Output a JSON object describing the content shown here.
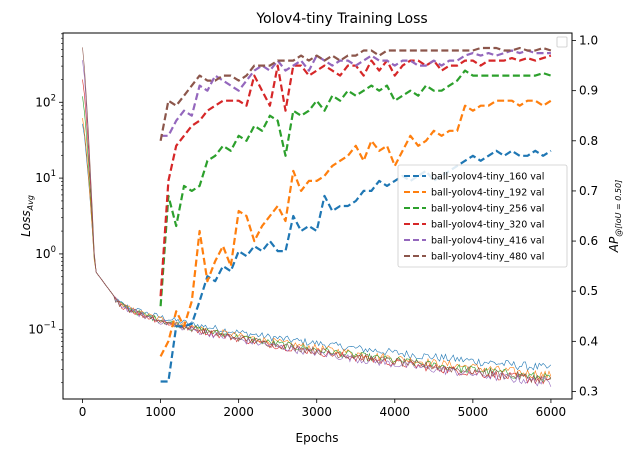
{
  "chart_data": {
    "type": "line",
    "title": "Yolov4-tiny Training Loss",
    "xlabel": "Epochs",
    "ylabel_left_main": "Loss",
    "ylabel_left_sub": "Avg",
    "ylabel_right_main": "AP",
    "ylabel_right_sub": "@[IoU = 0.50]",
    "xlim": [
      -250,
      6270
    ],
    "xticks": [
      0,
      1000,
      2000,
      3000,
      4000,
      5000,
      6000
    ],
    "left_axis": {
      "scale": "log",
      "ylim": [
        0.0122,
        820
      ],
      "tick_exponents": [
        -1,
        0,
        1,
        2
      ],
      "tick_base": "10"
    },
    "right_axis": {
      "scale": "linear",
      "ylim": [
        0.285,
        1.015
      ],
      "ticks": [
        0.3,
        0.4,
        0.5,
        0.6,
        0.7,
        0.8,
        0.9,
        1.0
      ],
      "tick_labels": [
        "0.3",
        "0.4",
        "0.5",
        "0.6",
        "0.7",
        "0.8",
        "0.9",
        "1.0"
      ]
    },
    "legend_position": "center-right",
    "loss_series": [
      {
        "color": "#1f77b4",
        "start": 52,
        "final": 0.031
      },
      {
        "color": "#ff7f0e",
        "start": 62,
        "final": 0.025
      },
      {
        "color": "#2ca02c",
        "start": 120,
        "final": 0.023
      },
      {
        "color": "#d62728",
        "start": 200,
        "final": 0.021
      },
      {
        "color": "#9467bd",
        "start": 360,
        "final": 0.02
      },
      {
        "color": "#8c564b",
        "start": 530,
        "final": 0.022
      }
    ],
    "val_series": [
      {
        "name": "ball-yolov4-tiny_160 val",
        "color": "#1f77b4",
        "x": [
          1000,
          1100,
          1200,
          1300,
          1400,
          1500,
          1600,
          1700,
          1800,
          1900,
          2000,
          2100,
          2200,
          2300,
          2400,
          2500,
          2600,
          2700,
          2800,
          2900,
          3000,
          3100,
          3200,
          3300,
          3400,
          3500,
          3600,
          3700,
          3800,
          3900,
          4000,
          4100,
          4200,
          4300,
          4400,
          4500,
          4600,
          4700,
          4800,
          4900,
          5000,
          5100,
          5200,
          5300,
          5400,
          5500,
          5600,
          5700,
          5800,
          5900,
          6000
        ],
        "y": [
          0.32,
          0.32,
          0.43,
          0.43,
          0.435,
          0.48,
          0.53,
          0.52,
          0.55,
          0.54,
          0.58,
          0.57,
          0.59,
          0.58,
          0.6,
          0.58,
          0.58,
          0.65,
          0.62,
          0.63,
          0.62,
          0.69,
          0.66,
          0.67,
          0.67,
          0.68,
          0.7,
          0.7,
          0.72,
          0.71,
          0.72,
          0.73,
          0.72,
          0.73,
          0.74,
          0.72,
          0.73,
          0.74,
          0.75,
          0.76,
          0.77,
          0.76,
          0.77,
          0.78,
          0.77,
          0.78,
          0.77,
          0.77,
          0.78,
          0.77,
          0.78
        ]
      },
      {
        "name": "ball-yolov4-tiny_192 val",
        "color": "#ff7f0e",
        "x": [
          1000,
          1100,
          1200,
          1300,
          1400,
          1500,
          1600,
          1700,
          1800,
          1900,
          2000,
          2100,
          2200,
          2300,
          2400,
          2500,
          2600,
          2700,
          2800,
          2900,
          3000,
          3100,
          3200,
          3300,
          3400,
          3500,
          3600,
          3700,
          3800,
          3900,
          4000,
          4100,
          4200,
          4300,
          4400,
          4500,
          4600,
          4700,
          4800,
          4900,
          5000,
          5100,
          5200,
          5300,
          5400,
          5500,
          5600,
          5700,
          5800,
          5900,
          6000
        ],
        "y": [
          0.37,
          0.4,
          0.46,
          0.43,
          0.48,
          0.62,
          0.52,
          0.56,
          0.59,
          0.55,
          0.66,
          0.65,
          0.6,
          0.63,
          0.65,
          0.67,
          0.64,
          0.74,
          0.7,
          0.72,
          0.72,
          0.73,
          0.75,
          0.76,
          0.77,
          0.79,
          0.76,
          0.8,
          0.78,
          0.79,
          0.75,
          0.78,
          0.81,
          0.79,
          0.8,
          0.82,
          0.81,
          0.82,
          0.82,
          0.87,
          0.86,
          0.87,
          0.87,
          0.88,
          0.88,
          0.88,
          0.87,
          0.88,
          0.88,
          0.87,
          0.88
        ]
      },
      {
        "name": "ball-yolov4-tiny_256 val",
        "color": "#2ca02c",
        "x": [
          1000,
          1100,
          1200,
          1300,
          1400,
          1500,
          1600,
          1700,
          1800,
          1900,
          2000,
          2100,
          2200,
          2300,
          2400,
          2500,
          2600,
          2700,
          2800,
          2900,
          3000,
          3100,
          3200,
          3300,
          3400,
          3500,
          3600,
          3700,
          3800,
          3900,
          4000,
          4100,
          4200,
          4300,
          4400,
          4500,
          4600,
          4700,
          4800,
          4900,
          5000,
          5100,
          5200,
          5300,
          5400,
          5500,
          5600,
          5700,
          5800,
          5900,
          6000
        ],
        "y": [
          0.47,
          0.69,
          0.63,
          0.71,
          0.7,
          0.71,
          0.76,
          0.77,
          0.79,
          0.78,
          0.81,
          0.8,
          0.83,
          0.82,
          0.85,
          0.84,
          0.77,
          0.86,
          0.85,
          0.86,
          0.88,
          0.86,
          0.89,
          0.88,
          0.9,
          0.89,
          0.9,
          0.91,
          0.9,
          0.91,
          0.88,
          0.89,
          0.9,
          0.89,
          0.91,
          0.9,
          0.9,
          0.91,
          0.92,
          0.94,
          0.93,
          0.93,
          0.93,
          0.93,
          0.93,
          0.93,
          0.93,
          0.93,
          0.93,
          0.935,
          0.93
        ]
      },
      {
        "name": "ball-yolov4-tiny_320 val",
        "color": "#d62728",
        "x": [
          1000,
          1100,
          1200,
          1300,
          1400,
          1500,
          1600,
          1700,
          1800,
          1900,
          2000,
          2100,
          2200,
          2300,
          2400,
          2500,
          2600,
          2700,
          2800,
          2900,
          3000,
          3100,
          3200,
          3300,
          3400,
          3500,
          3600,
          3700,
          3800,
          3900,
          4000,
          4100,
          4200,
          4300,
          4400,
          4500,
          4600,
          4700,
          4800,
          4900,
          5000,
          5100,
          5200,
          5300,
          5400,
          5500,
          5600,
          5700,
          5800,
          5900,
          6000
        ],
        "y": [
          0.49,
          0.72,
          0.79,
          0.81,
          0.83,
          0.84,
          0.86,
          0.87,
          0.88,
          0.88,
          0.88,
          0.87,
          0.93,
          0.9,
          0.87,
          0.95,
          0.86,
          0.95,
          0.95,
          0.93,
          0.94,
          0.95,
          0.94,
          0.93,
          0.95,
          0.95,
          0.93,
          0.96,
          0.94,
          0.96,
          0.93,
          0.95,
          0.96,
          0.96,
          0.95,
          0.96,
          0.94,
          0.95,
          0.95,
          0.96,
          0.96,
          0.95,
          0.96,
          0.96,
          0.96,
          0.965,
          0.96,
          0.965,
          0.96,
          0.965,
          0.97
        ]
      },
      {
        "name": "ball-yolov4-tiny_416 val",
        "color": "#9467bd",
        "x": [
          1000,
          1100,
          1200,
          1300,
          1400,
          1500,
          1600,
          1700,
          1800,
          1900,
          2000,
          2100,
          2200,
          2300,
          2400,
          2500,
          2600,
          2700,
          2800,
          2900,
          3000,
          3100,
          3200,
          3300,
          3400,
          3500,
          3600,
          3700,
          3800,
          3900,
          4000,
          4100,
          4200,
          4300,
          4400,
          4500,
          4600,
          4700,
          4800,
          4900,
          5000,
          5100,
          5200,
          5300,
          5400,
          5500,
          5600,
          5700,
          5800,
          5900,
          6000
        ],
        "y": [
          0.81,
          0.81,
          0.84,
          0.86,
          0.85,
          0.91,
          0.9,
          0.93,
          0.92,
          0.91,
          0.9,
          0.92,
          0.94,
          0.95,
          0.94,
          0.96,
          0.94,
          0.95,
          0.96,
          0.94,
          0.97,
          0.96,
          0.95,
          0.96,
          0.96,
          0.95,
          0.96,
          0.97,
          0.96,
          0.96,
          0.95,
          0.96,
          0.96,
          0.95,
          0.95,
          0.96,
          0.95,
          0.96,
          0.96,
          0.97,
          0.975,
          0.97,
          0.975,
          0.97,
          0.975,
          0.98,
          0.975,
          0.98,
          0.975,
          0.975,
          0.975
        ]
      },
      {
        "name": "ball-yolov4-tiny_480 val",
        "color": "#8c564b",
        "x": [
          1000,
          1100,
          1200,
          1300,
          1400,
          1500,
          1600,
          1700,
          1800,
          1900,
          2000,
          2100,
          2200,
          2300,
          2400,
          2500,
          2600,
          2700,
          2800,
          2900,
          3000,
          3100,
          3200,
          3300,
          3400,
          3500,
          3600,
          3700,
          3800,
          3900,
          4000,
          4100,
          4200,
          4300,
          4400,
          4500,
          4600,
          4700,
          4800,
          4900,
          5000,
          5100,
          5200,
          5300,
          5400,
          5500,
          5600,
          5700,
          5800,
          5900,
          6000
        ],
        "y": [
          0.8,
          0.88,
          0.87,
          0.89,
          0.91,
          0.93,
          0.92,
          0.92,
          0.93,
          0.93,
          0.92,
          0.93,
          0.95,
          0.95,
          0.95,
          0.96,
          0.96,
          0.96,
          0.97,
          0.96,
          0.97,
          0.96,
          0.97,
          0.96,
          0.97,
          0.97,
          0.98,
          0.98,
          0.97,
          0.98,
          0.98,
          0.98,
          0.98,
          0.98,
          0.98,
          0.98,
          0.98,
          0.98,
          0.98,
          0.98,
          0.98,
          0.985,
          0.985,
          0.985,
          0.98,
          0.98,
          0.985,
          0.98,
          0.98,
          0.985,
          0.98
        ]
      }
    ]
  }
}
